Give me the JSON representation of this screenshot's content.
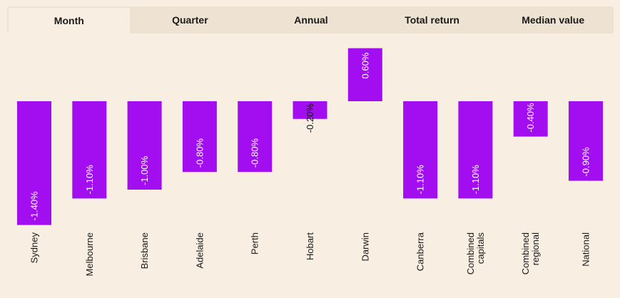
{
  "tabs": [
    {
      "label": "Month",
      "active": true
    },
    {
      "label": "Quarter",
      "active": false
    },
    {
      "label": "Annual",
      "active": false
    },
    {
      "label": "Total return",
      "active": false
    },
    {
      "label": "Median value",
      "active": false
    }
  ],
  "colors": {
    "bar": "#a30ef0",
    "background": "#f8efe2",
    "tab_bar": "#eee3d2",
    "value_text": "#ffffff",
    "value_text_outside": "#111111"
  },
  "chart_data": {
    "type": "bar",
    "orientation": "vertical",
    "categories": [
      [
        "Sydney"
      ],
      [
        "Melbourne"
      ],
      [
        "Brisbane"
      ],
      [
        "Adelaide"
      ],
      [
        "Perth"
      ],
      [
        "Hobart"
      ],
      [
        "Darwin"
      ],
      [
        "Canberra"
      ],
      [
        "Combined",
        "capitals"
      ],
      [
        "Combined",
        "regional"
      ],
      [
        "National"
      ]
    ],
    "values": [
      -1.4,
      -1.1,
      -1.0,
      -0.8,
      -0.8,
      -0.2,
      0.6,
      -1.1,
      -1.1,
      -0.4,
      -0.9
    ],
    "value_labels": [
      "-1.40%",
      "-1.10%",
      "-1.00%",
      "-0.80%",
      "-0.80%",
      "-0.20%",
      "0.60%",
      "-1.10%",
      "-1.10%",
      "-0.40%",
      "-0.90%"
    ],
    "ylim": [
      -1.4,
      0.6
    ],
    "grid": false,
    "legend": "none",
    "title": "",
    "xlabel": "",
    "ylabel": ""
  }
}
